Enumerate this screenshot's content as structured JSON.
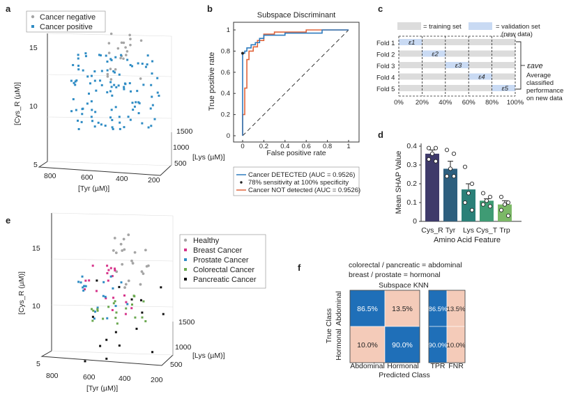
{
  "chart_data": [
    {
      "panel": "a",
      "type": "scatter",
      "title": "",
      "xlabel": "[Tyr (µM)]",
      "ylabel": "[Lys (µM)]",
      "zlabel": "[Cys_R (µM)]",
      "x_ticks": [
        "800",
        "600",
        "400",
        "200"
      ],
      "y_ticks": [
        "1500",
        "1000",
        "500"
      ],
      "z_ticks": [
        "15",
        "10",
        "5"
      ],
      "legend": [
        "Cancer negative",
        "Cancer positive"
      ],
      "colors": [
        "#a5a5a5",
        "#2f8cc4"
      ]
    },
    {
      "panel": "b",
      "type": "line",
      "title": "Subspace Discriminant",
      "xlabel": "False positive rate",
      "ylabel": "True positive rate",
      "xlim": [
        0,
        1
      ],
      "ylim": [
        0,
        1
      ],
      "x_ticks": [
        "0",
        "0.2",
        "0.4",
        "0.6",
        "0.8",
        "1"
      ],
      "y_ticks": [
        "0",
        "0.2",
        "0.4",
        "0.6",
        "0.8",
        "1"
      ],
      "legend": [
        "Cancer DETECTED (AUC = 0.9526)",
        "78% sensitivity at 100% specificity",
        "Cancer NOT detected (AUC = 0.9526)"
      ],
      "series": [
        {
          "name": "Cancer DETECTED (AUC = 0.9526)",
          "color": "#2d7bbf",
          "x": [
            0,
            0,
            0.02,
            0.02,
            0.04,
            0.04,
            0.08,
            0.08,
            0.12,
            0.12,
            0.16,
            0.16,
            0.2,
            0.2,
            0.4,
            0.4,
            0.75,
            0.75,
            1
          ],
          "y": [
            0,
            0.78,
            0.78,
            0.8,
            0.8,
            0.83,
            0.83,
            0.86,
            0.86,
            0.88,
            0.88,
            0.92,
            0.92,
            0.95,
            0.95,
            0.97,
            0.97,
            1,
            1
          ]
        },
        {
          "name": "Cancer NOT detected (AUC = 0.9526)",
          "color": "#e0643a",
          "x": [
            0,
            0,
            0.02,
            0.02,
            0.04,
            0.04,
            0.06,
            0.06,
            0.1,
            0.1,
            0.14,
            0.14,
            0.2,
            0.2,
            0.3,
            0.3,
            0.6,
            0.6,
            1
          ],
          "y": [
            0,
            0.2,
            0.2,
            0.45,
            0.45,
            0.72,
            0.72,
            0.8,
            0.8,
            0.84,
            0.84,
            0.9,
            0.9,
            0.96,
            0.96,
            0.98,
            0.98,
            1,
            1
          ]
        }
      ],
      "operating_point": {
        "x": 0,
        "y": 0.78
      }
    },
    {
      "panel": "c",
      "type": "diagram",
      "legend": [
        "= training set",
        "= validation set (new data)"
      ],
      "folds": [
        {
          "label": "Fold 1",
          "sym": "ε1"
        },
        {
          "label": "Fold 2",
          "sym": "ε2"
        },
        {
          "label": "Fold 3",
          "sym": "ε3"
        },
        {
          "label": "Fold 4",
          "sym": "ε4"
        },
        {
          "label": "Fold 5",
          "sym": "ε5"
        }
      ],
      "x_ticks": [
        "0%",
        "20%",
        "40%",
        "60%",
        "80%",
        "100%"
      ],
      "note_symbol": "εave",
      "note": [
        "Average",
        "classified",
        "performance",
        "on new data"
      ]
    },
    {
      "panel": "d",
      "type": "bar",
      "title": "",
      "xlabel": "Amino Acid Feature",
      "ylabel": "Mean SHAP Value",
      "ylim": [
        0,
        0.4
      ],
      "y_ticks": [
        "0",
        "0.1",
        "0.2",
        "0.3",
        "0.4"
      ],
      "categories": [
        "Cys_R",
        "Tyr",
        "Lys",
        "Cys_T",
        "Trp"
      ],
      "values": [
        0.36,
        0.28,
        0.17,
        0.11,
        0.09
      ],
      "errors": [
        0.02,
        0.04,
        0.03,
        0.01,
        0.02
      ],
      "colors": [
        "#3e3a6a",
        "#2e5f7e",
        "#2b8078",
        "#3f9b74",
        "#7cb867"
      ],
      "points": [
        [
          0.39,
          0.39,
          0.36,
          0.33,
          0.32
        ],
        [
          0.38,
          0.36,
          0.28,
          0.24,
          0.24
        ],
        [
          0.29,
          0.2,
          0.15,
          0.1,
          0.06
        ],
        [
          0.15,
          0.13,
          0.11,
          0.09,
          0.08
        ],
        [
          0.13,
          0.1,
          0.09,
          0.06,
          0.03
        ]
      ]
    },
    {
      "panel": "e",
      "type": "scatter",
      "title": "",
      "xlabel": "[Tyr (µM)]",
      "ylabel": "[Lys (µM)]",
      "zlabel": "[Cys_R (µM)]",
      "x_ticks": [
        "800",
        "600",
        "400",
        "200"
      ],
      "y_ticks": [
        "1500",
        "1000",
        "500"
      ],
      "z_ticks": [
        "15",
        "10",
        "5"
      ],
      "legend": [
        "Healthy",
        "Breast Cancer",
        "Prostate Cancer",
        "Colorectal Cancer",
        "Pancreatic Cancer"
      ],
      "colors": [
        "#a5a5a5",
        "#d6338a",
        "#2f8cc4",
        "#6aa84f",
        "#111111"
      ]
    },
    {
      "panel": "f",
      "type": "heatmap",
      "title": "Subspace KNN",
      "subtitle": [
        "colorectal / pancreatic = abdominal",
        "breast / prostate = hormonal"
      ],
      "xlabel": "Predicted Class",
      "ylabel": "True Class",
      "classes": [
        "Abdominal",
        "Hormonal"
      ],
      "matrix": [
        [
          "86.5%",
          "13.5%"
        ],
        [
          "10.0%",
          "90.0%"
        ]
      ],
      "summary_cols": [
        "TPR",
        "FNR"
      ],
      "summary": [
        [
          "86.5%",
          "13.5%"
        ],
        [
          "90.0%",
          "10.0%"
        ]
      ],
      "diag_color": "#1f6fb8",
      "off_color": "#f4cbb9"
    }
  ]
}
